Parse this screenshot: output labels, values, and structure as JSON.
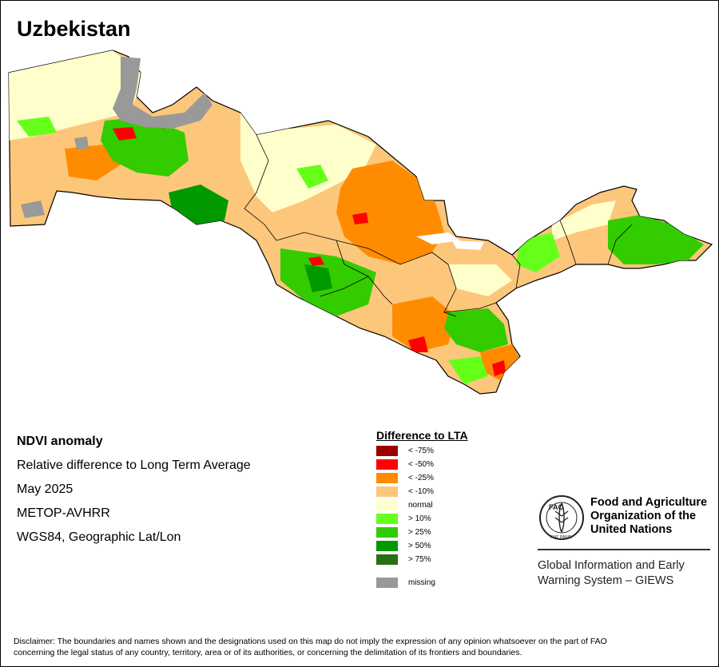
{
  "map": {
    "title": "Uzbekistan"
  },
  "info": {
    "heading": "NDVI anomaly",
    "line1": "Relative difference to Long Term Average",
    "line2": "May 2025",
    "line3": "METOP-AVHRR",
    "line4": "WGS84, Geographic Lat/Lon"
  },
  "legend": {
    "title": "Difference to LTA",
    "items": [
      {
        "label": "< -75%",
        "color": "#9b0000"
      },
      {
        "label": "< -50%",
        "color": "#ff0000"
      },
      {
        "label": "< -25%",
        "color": "#ff8c00"
      },
      {
        "label": "< -10%",
        "color": "#fcc77a"
      },
      {
        "label": "normal",
        "color": "#ffffcc"
      },
      {
        "label": "> 10%",
        "color": "#66ff1a"
      },
      {
        "label": "> 25%",
        "color": "#33cc00"
      },
      {
        "label": "> 50%",
        "color": "#009900"
      },
      {
        "label": "> 75%",
        "color": "#2a6e14"
      }
    ],
    "missing": {
      "label": "missing",
      "color": "#999999"
    }
  },
  "organization": {
    "name_line1": "Food and Agriculture",
    "name_line2": "Organization of the",
    "name_line3": "United Nations",
    "logo_text": "FAO",
    "logo_ring_text": "FIAT PANIS",
    "system_line1": "Global Information and Early",
    "system_line2": "Warning System – GIEWS"
  },
  "disclaimer": {
    "line1": "Disclaimer: The boundaries and names shown and the designations used on this map do not imply the expression of any opinion whatsoever on the part of FAO",
    "line2": "concerning the legal status of any country, territory, area or of its authorities, or concerning the delimitation of its frontiers and boundaries."
  }
}
